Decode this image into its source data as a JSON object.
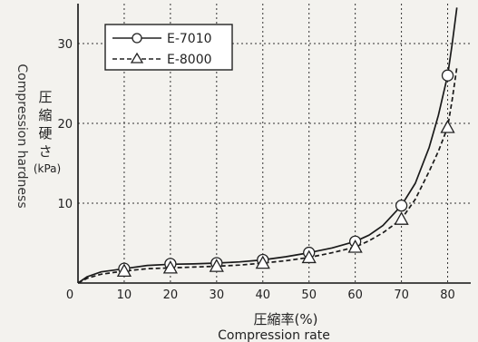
{
  "chart_data": {
    "type": "line",
    "x_categories": [
      0,
      10,
      20,
      30,
      40,
      50,
      60,
      70,
      80
    ],
    "x_tick_labels": [
      "0",
      "10",
      "20",
      "30",
      "40",
      "50",
      "60",
      "70",
      "80"
    ],
    "y_tick_labels": [
      "10",
      "20",
      "30"
    ],
    "xlim": [
      0,
      85
    ],
    "ylim": [
      0,
      35
    ],
    "grid": true,
    "xlabel_jp": "圧縮率(%)",
    "xlabel_en": "Compression rate",
    "ylabel_en": "Compression hardness",
    "ylabel_jp_chars": [
      "圧",
      "縮",
      "硬",
      "さ"
    ],
    "ylabel_unit": "(kPa)",
    "legend_position": "top-left",
    "series": [
      {
        "name": "E-7010",
        "marker": "circle",
        "line_style": "solid",
        "x": [
          10,
          20,
          30,
          40,
          50,
          60,
          70,
          80
        ],
        "values": [
          1.8,
          2.4,
          2.5,
          2.9,
          3.8,
          5.2,
          9.7,
          26.0
        ],
        "curve_x": [
          0,
          2,
          5,
          10,
          15,
          20,
          25,
          30,
          35,
          40,
          45,
          50,
          55,
          60,
          63,
          66,
          70,
          73,
          76,
          78,
          80,
          81,
          82
        ],
        "curve_y": [
          0,
          0.8,
          1.4,
          1.8,
          2.2,
          2.35,
          2.4,
          2.5,
          2.65,
          2.9,
          3.3,
          3.8,
          4.4,
          5.2,
          6.0,
          7.2,
          9.7,
          12.5,
          17.0,
          21.0,
          26.0,
          30.0,
          34.5
        ]
      },
      {
        "name": "E-8000",
        "marker": "triangle",
        "line_style": "dashed",
        "x": [
          10,
          20,
          30,
          40,
          50,
          60,
          70,
          80
        ],
        "values": [
          1.5,
          1.9,
          2.1,
          2.5,
          3.2,
          4.5,
          8.0,
          19.5
        ],
        "curve_x": [
          0,
          2,
          5,
          10,
          15,
          20,
          25,
          30,
          35,
          40,
          45,
          50,
          55,
          60,
          63,
          66,
          70,
          73,
          76,
          78,
          80,
          81,
          82
        ],
        "curve_y": [
          0,
          0.6,
          1.1,
          1.5,
          1.8,
          1.9,
          2.0,
          2.1,
          2.25,
          2.5,
          2.8,
          3.2,
          3.8,
          4.5,
          5.3,
          6.3,
          8.0,
          10.5,
          14.0,
          16.5,
          19.5,
          23.0,
          27.0
        ]
      }
    ]
  }
}
